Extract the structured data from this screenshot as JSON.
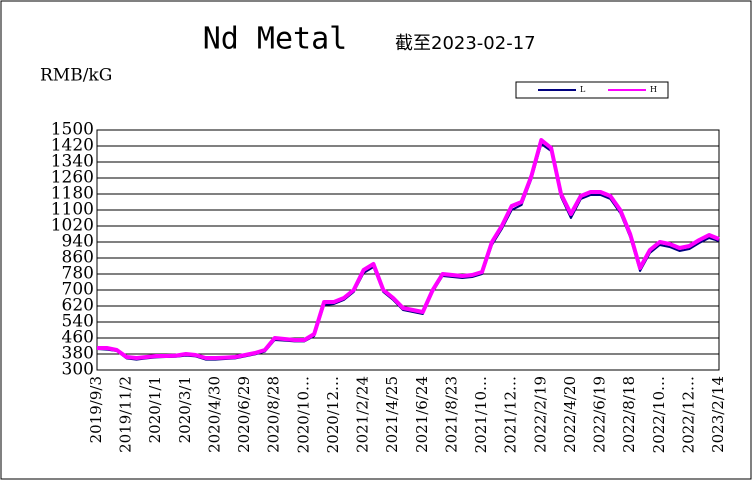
{
  "chart_data": {
    "type": "line",
    "title": "Nd Metal",
    "subtitle": "截至2023-02-17",
    "y_label": "RMB/kG",
    "categories": [
      "2019/9/3",
      null,
      null,
      "2019/11/2",
      null,
      null,
      "2020/1/1",
      null,
      null,
      "2020/3/1",
      null,
      null,
      "2020/4/30",
      null,
      null,
      "2020/6/29",
      null,
      null,
      "2020/8/28",
      null,
      null,
      "2020/10…",
      null,
      null,
      "2020/12…",
      null,
      null,
      "2021/2/24",
      null,
      null,
      "2021/4/25",
      null,
      null,
      "2021/6/24",
      null,
      null,
      "2021/8/23",
      null,
      null,
      "2021/10…",
      null,
      null,
      "2021/12…",
      null,
      null,
      "2022/2/19",
      null,
      null,
      "2022/4/20",
      null,
      null,
      "2022/6/19",
      null,
      null,
      "2022/8/18",
      null,
      null,
      "2022/10…",
      null,
      null,
      "2022/12…",
      null,
      null,
      "2023/2/14"
    ],
    "series": [
      {
        "name": "L",
        "color": "#000080",
        "values": [
          405,
          402,
          395,
          358,
          352,
          358,
          363,
          365,
          366,
          372,
          368,
          352,
          352,
          355,
          358,
          368,
          378,
          392,
          450,
          447,
          443,
          443,
          470,
          625,
          630,
          650,
          690,
          785,
          815,
          690,
          650,
          600,
          590,
          580,
          690,
          770,
          765,
          760,
          765,
          780,
          925,
          1005,
          1100,
          1125,
          1255,
          1430,
          1395,
          1165,
          1060,
          1155,
          1175,
          1175,
          1155,
          1085,
          965,
          795,
          885,
          925,
          915,
          895,
          905,
          935,
          960,
          945
        ]
      },
      {
        "name": "H",
        "color": "#ff00ff",
        "values": [
          410,
          410,
          400,
          365,
          360,
          365,
          370,
          370,
          372,
          380,
          375,
          360,
          360,
          362,
          365,
          375,
          385,
          400,
          460,
          455,
          450,
          450,
          480,
          640,
          640,
          660,
          700,
          800,
          830,
          700,
          660,
          610,
          600,
          590,
          700,
          780,
          775,
          770,
          775,
          790,
          940,
          1020,
          1120,
          1140,
          1270,
          1450,
          1410,
          1180,
          1080,
          1170,
          1190,
          1190,
          1170,
          1100,
          980,
          810,
          900,
          940,
          930,
          910,
          920,
          950,
          975,
          955
        ]
      }
    ],
    "ylim": [
      300,
      1500
    ],
    "yticks": [
      300,
      380,
      460,
      540,
      620,
      700,
      780,
      860,
      940,
      1020,
      1100,
      1180,
      1260,
      1340,
      1420,
      1500
    ],
    "grid": true
  }
}
